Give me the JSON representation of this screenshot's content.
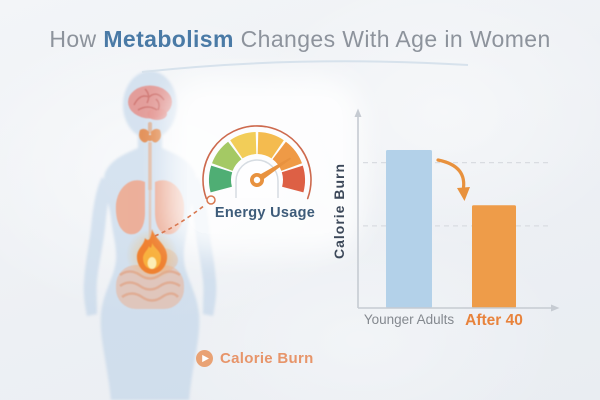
{
  "title": {
    "prefix": "How ",
    "highlight": "Metabolism",
    "suffix": " Changes With Age in Women",
    "text_color": "#8d939c",
    "highlight_color": "#4a7aa6"
  },
  "body_diagram": {
    "organs": [
      "brain",
      "thyroid",
      "trachea",
      "lungs",
      "metabolic-flame",
      "intestines"
    ],
    "silhouette_color": "#a9c6e3"
  },
  "gauge": {
    "label": "Energy Usage",
    "segment_colors": [
      "#4fae74",
      "#a4c964",
      "#f2cd58",
      "#f4bb4f",
      "#ef9a46",
      "#dd6045"
    ],
    "outer_arc_color": "#cd6a4e",
    "needle_color": "#e8923f",
    "needle_angle_deg": 33,
    "needle_position": "high (between orange and red)"
  },
  "chart_data": {
    "type": "bar",
    "categories": [
      "Younger Adults",
      "After 40"
    ],
    "values": [
      100,
      65
    ],
    "values_are_relative_estimates": true,
    "gridlines": [
      92,
      52
    ],
    "title": "",
    "xlabel": "",
    "ylabel": "Calorie Burn",
    "ylim": [
      0,
      120
    ],
    "grid": "two dashed horizontal gridlines",
    "legend_position": "none",
    "bar_colors": [
      "#b3d1e9",
      "#ee9c49"
    ],
    "category_colors": [
      "#84898f",
      "#e8833c"
    ],
    "annotation": "downward curved orange arrow from first bar to second"
  },
  "legend": {
    "label": "Calorie Burn",
    "icon": "play-icon",
    "color": "#e7956a"
  },
  "colors": {
    "background": "#edf0f4",
    "axis": "#c6cbd2",
    "axis_label": "#3c4859",
    "connector": "#d87850",
    "flame_outer": "#ef8130",
    "flame_mid": "#f8b13e",
    "flame_core": "#fceeb5"
  }
}
